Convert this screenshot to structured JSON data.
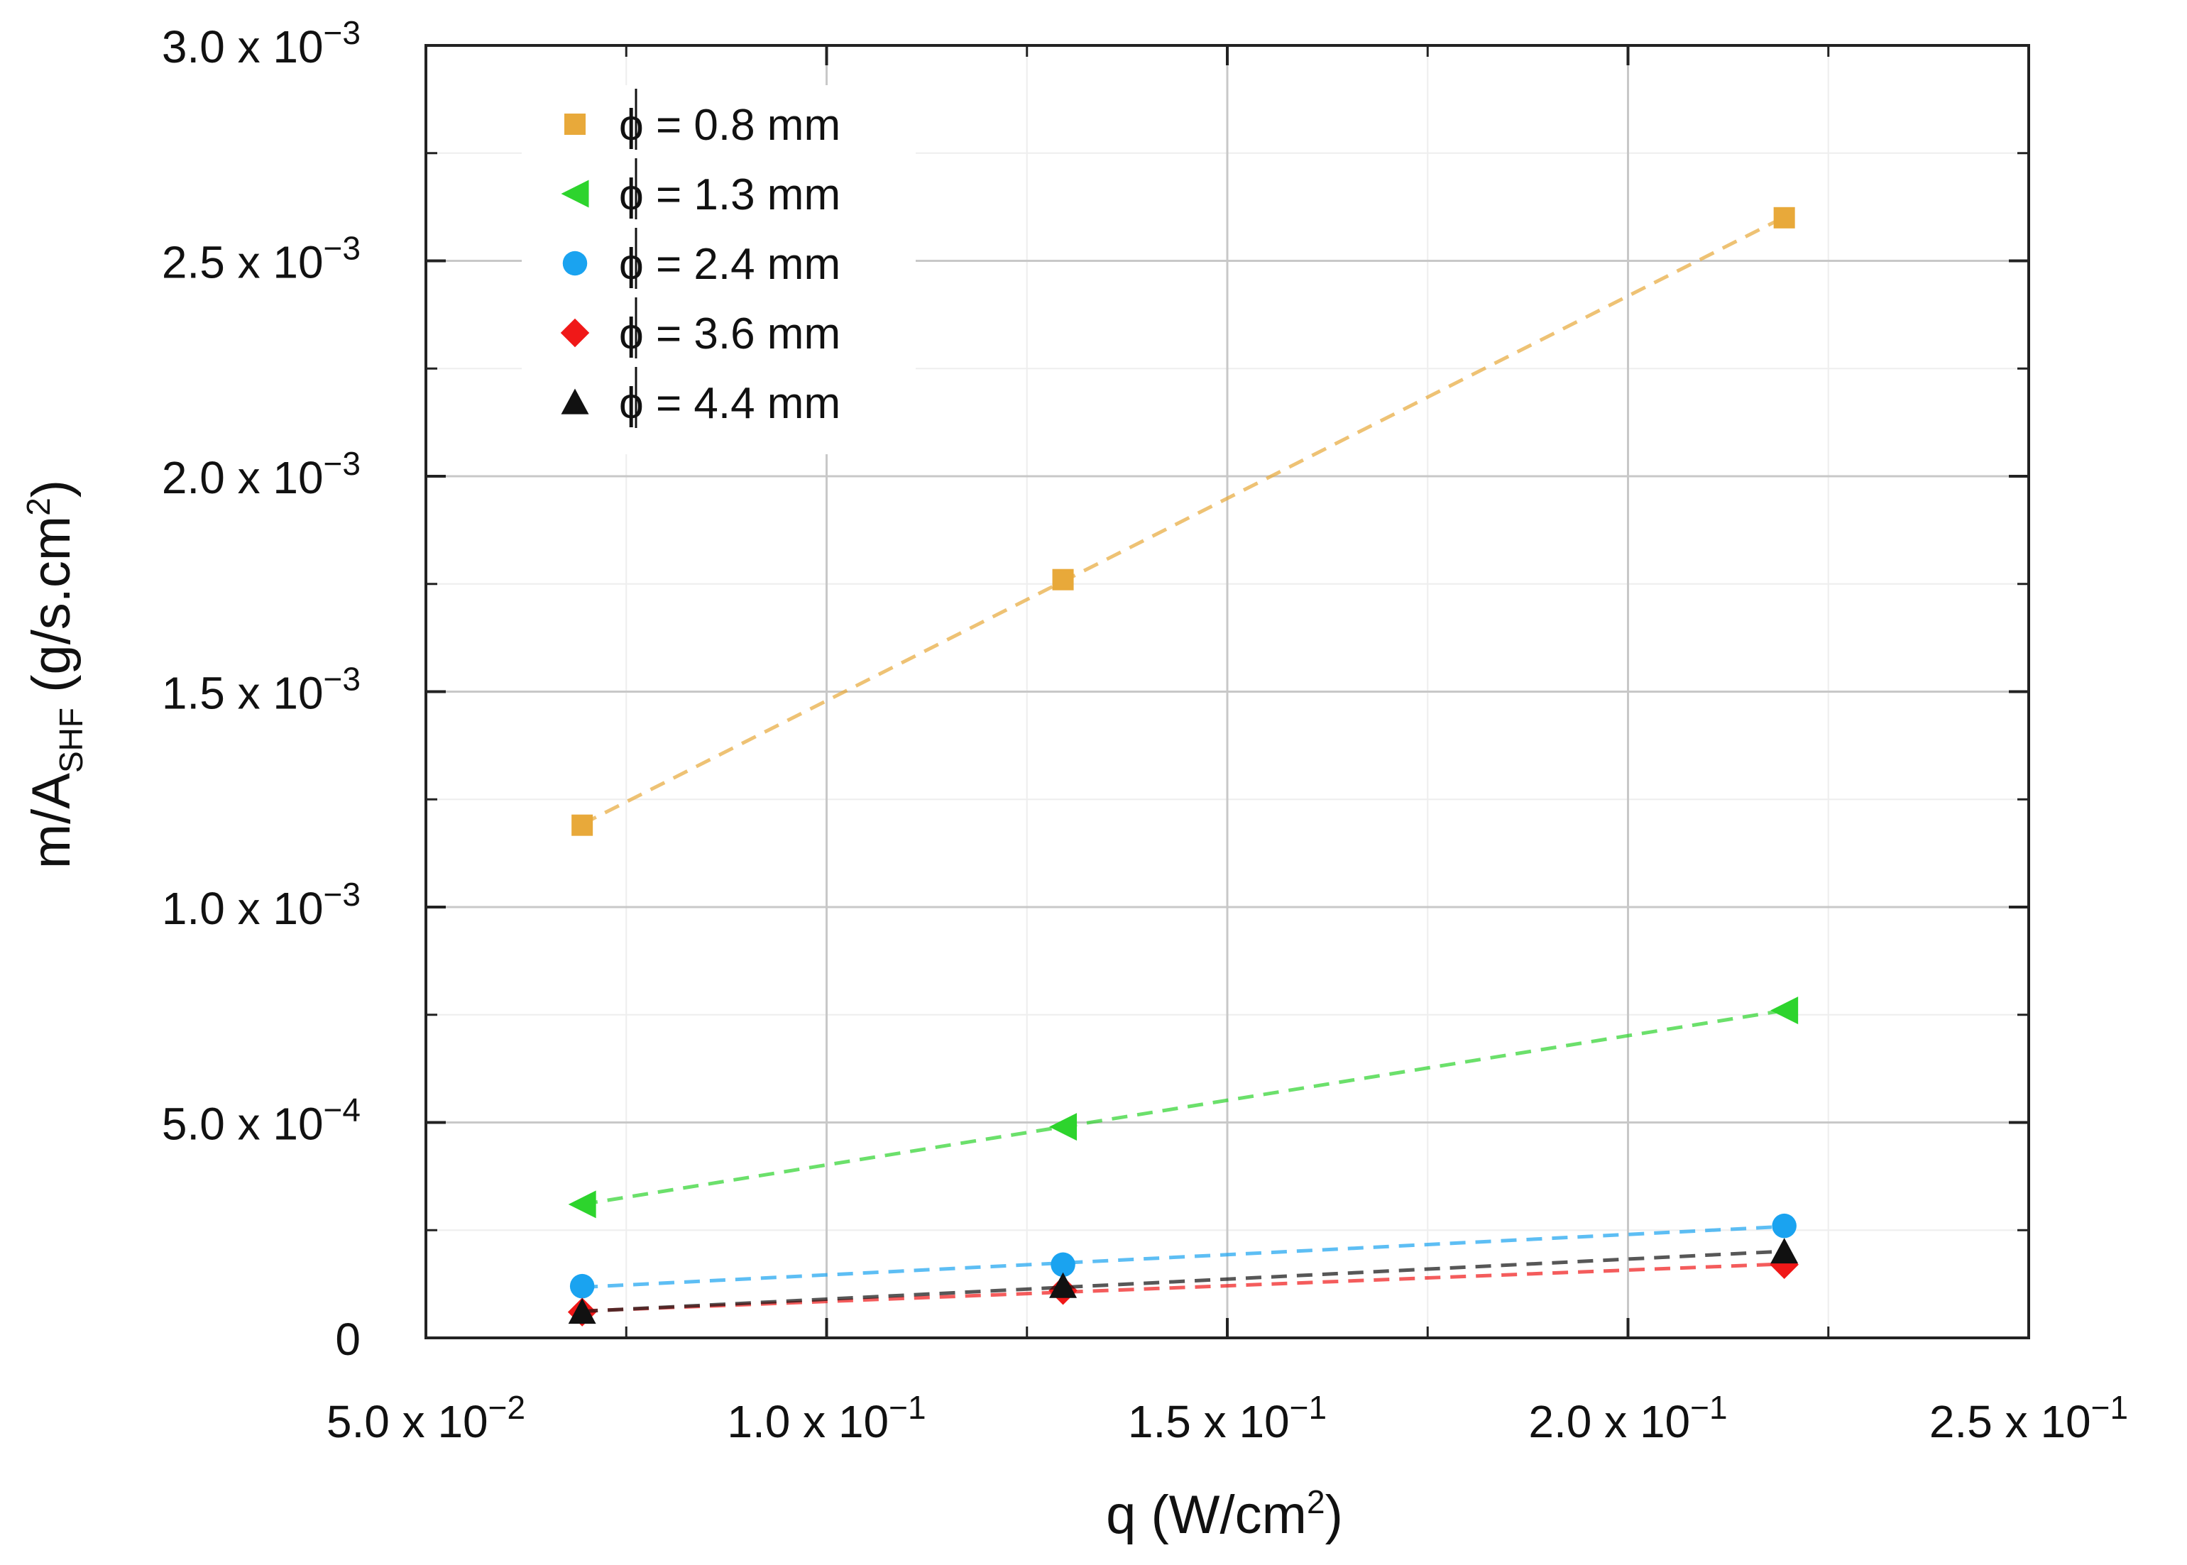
{
  "chart_data": {
    "type": "line",
    "title": "",
    "xlabel": "q (W/cm²)",
    "ylabel": "m/A_SHF (g/s.cm²)",
    "xlabel_parts": {
      "main": "q (W/cm",
      "sup": "2",
      "end": ")"
    },
    "ylabel_parts": {
      "main": "m/A",
      "sub": "SHF",
      "mid": " (g/s.cm",
      "sup": "2",
      "end": ")"
    },
    "xlim": [
      0.05,
      0.25
    ],
    "ylim": [
      0,
      0.003
    ],
    "grid": true,
    "legend_position": "top-left",
    "x_ticks": [
      {
        "value": 0.05,
        "mantissa": "5.0 x 10",
        "exp": "−2"
      },
      {
        "value": 0.1,
        "mantissa": "1.0 x 10",
        "exp": "−1"
      },
      {
        "value": 0.15,
        "mantissa": "1.5 x 10",
        "exp": "−1"
      },
      {
        "value": 0.2,
        "mantissa": "2.0 x 10",
        "exp": "−1"
      },
      {
        "value": 0.25,
        "mantissa": "2.5 x 10",
        "exp": "−1"
      }
    ],
    "y_ticks": [
      {
        "value": 0,
        "mantissa": "0",
        "exp": ""
      },
      {
        "value": 0.0005,
        "mantissa": "5.0 x 10",
        "exp": "−4"
      },
      {
        "value": 0.001,
        "mantissa": "1.0 x 10",
        "exp": "−3"
      },
      {
        "value": 0.0015,
        "mantissa": "1.5 x 10",
        "exp": "−3"
      },
      {
        "value": 0.002,
        "mantissa": "2.0 x 10",
        "exp": "−3"
      },
      {
        "value": 0.0025,
        "mantissa": "2.5 x 10",
        "exp": "−3"
      },
      {
        "value": 0.003,
        "mantissa": "3.0 x 10",
        "exp": "−3"
      }
    ],
    "x": [
      0.0695,
      0.1295,
      0.2195
    ],
    "series": [
      {
        "name": "ϕ = 0.8 mm",
        "symbol": "ϕ",
        "label": " = 0.8 mm",
        "marker": "square",
        "color": "#E8A93A",
        "values": [
          0.00119,
          0.00176,
          0.0026
        ]
      },
      {
        "name": "ϕ = 1.3 mm",
        "symbol": "ϕ",
        "label": " = 1.3 mm",
        "marker": "triangle-left",
        "color": "#2DD42D",
        "values": [
          0.00031,
          0.00049,
          0.00076
        ]
      },
      {
        "name": "ϕ = 2.4 mm",
        "symbol": "ϕ",
        "label": " = 2.4 mm",
        "marker": "circle",
        "color": "#1AA3F0",
        "values": [
          0.00012,
          0.00017,
          0.00026
        ]
      },
      {
        "name": "ϕ = 3.6 mm",
        "symbol": "ϕ",
        "label": " = 3.6 mm",
        "marker": "diamond",
        "color": "#F01818",
        "values": [
          6e-05,
          0.00011,
          0.00017
        ]
      },
      {
        "name": "ϕ = 4.4 mm",
        "symbol": "ϕ",
        "label": " = 4.4 mm",
        "marker": "triangle-up",
        "color": "#111111",
        "values": [
          6e-05,
          0.00012,
          0.0002
        ]
      }
    ]
  }
}
